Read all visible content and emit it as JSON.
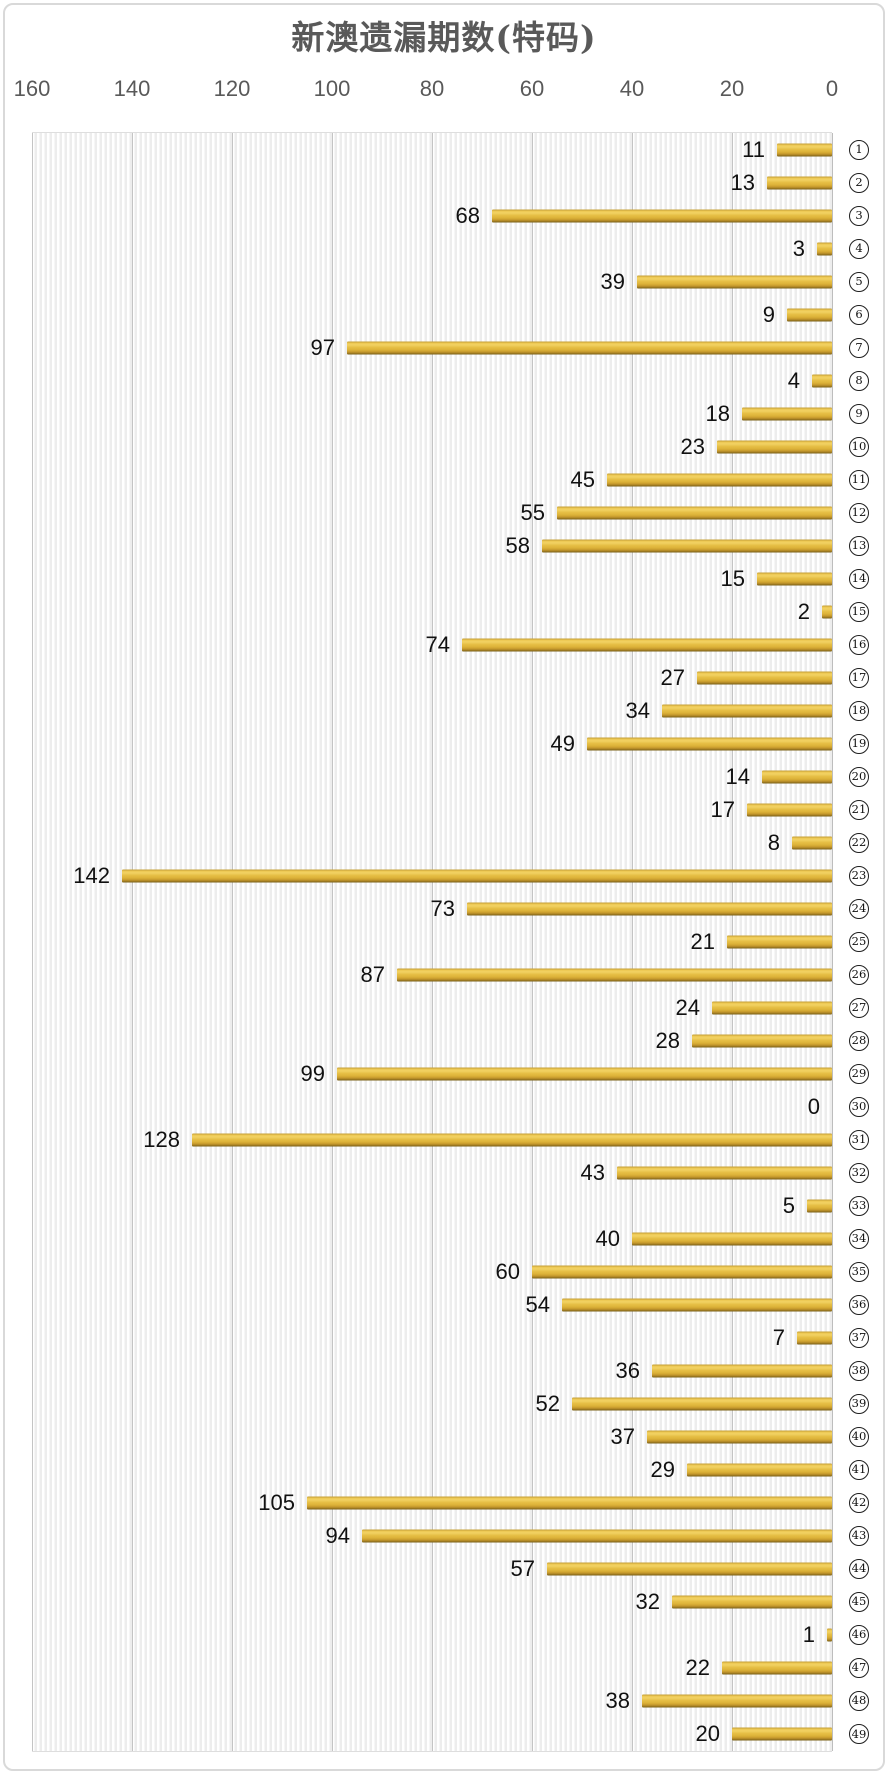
{
  "title": "新澳遗漏期数(特码)",
  "colors": {
    "bar_gold": "#e3ba3e",
    "bar_highlight": "#f2d263",
    "bar_shadow": "#715a15",
    "axis_text": "#595959",
    "value_text": "#111111",
    "gridline": "#c4c4c4",
    "stripe": "#ededed",
    "card_border": "#d9d9d9"
  },
  "chart_data": {
    "type": "bar",
    "orientation": "horizontal",
    "title": "新澳遗漏期数(特码)",
    "categories": [
      "1",
      "2",
      "3",
      "4",
      "5",
      "6",
      "7",
      "8",
      "9",
      "10",
      "11",
      "12",
      "13",
      "14",
      "15",
      "16",
      "17",
      "18",
      "19",
      "20",
      "21",
      "22",
      "23",
      "24",
      "25",
      "26",
      "27",
      "28",
      "29",
      "30",
      "31",
      "32",
      "33",
      "34",
      "35",
      "36",
      "37",
      "38",
      "39",
      "40",
      "41",
      "42",
      "43",
      "44",
      "45",
      "46",
      "47",
      "48",
      "49"
    ],
    "category_style": "circled-number",
    "values": [
      11,
      13,
      68,
      3,
      39,
      9,
      97,
      4,
      18,
      23,
      45,
      55,
      58,
      15,
      2,
      74,
      27,
      34,
      49,
      14,
      17,
      8,
      142,
      73,
      21,
      87,
      24,
      28,
      99,
      0,
      128,
      43,
      5,
      40,
      60,
      54,
      7,
      36,
      52,
      37,
      29,
      105,
      94,
      57,
      32,
      1,
      22,
      38,
      20
    ],
    "value_labels": true,
    "x_axis": {
      "ticks": [
        160,
        140,
        120,
        100,
        80,
        60,
        40,
        20,
        0
      ],
      "min": 0,
      "max": 160,
      "reversed": true,
      "position": "top"
    },
    "grid": true,
    "legend": false
  }
}
